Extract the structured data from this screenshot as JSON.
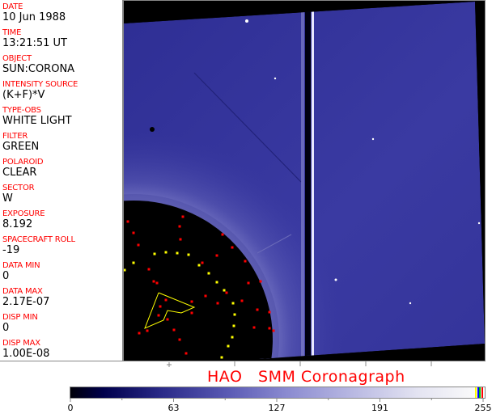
{
  "header_fields": [
    {
      "label": "DATE",
      "value": "10 Jun 1988"
    },
    {
      "label": "TIME",
      "value": "13:21:51 UT"
    },
    {
      "label": "OBJECT",
      "value": "SUN:CORONA"
    },
    {
      "label": "INTENSITY SOURCE",
      "value": "(K+F)*V"
    },
    {
      "label": "TYPE-OBS",
      "value": "WHITE LIGHT"
    },
    {
      "label": "FILTER",
      "value": "GREEN"
    },
    {
      "label": "POLAROID",
      "value": "CLEAR"
    },
    {
      "label": "SECTOR",
      "value": "W"
    },
    {
      "label": "EXPOSURE",
      "value": "8.192"
    },
    {
      "label": "SPACECRAFT ROLL",
      "value": "-19"
    },
    {
      "label": "DATA MIN",
      "value": "0"
    },
    {
      "label": "DATA MAX",
      "value": "2.17E-07"
    },
    {
      "label": "DISP MIN",
      "value": "0"
    },
    {
      "label": "DISP MAX",
      "value": "1.00E-08"
    }
  ],
  "title": "HAO   SMM Coronagraph",
  "colorbar": {
    "min": 0,
    "max": 255,
    "tick_labels": [
      "0",
      "63",
      "127",
      "191",
      "255"
    ],
    "colormap": [
      "#000008",
      "#00004c",
      "#5a5ab4",
      "#b8b8e2",
      "#fafafa"
    ],
    "end_stripes": [
      "#ffff00",
      "#0000ff",
      "#00c000",
      "#ff0000"
    ]
  },
  "colors": {
    "label": "#ff0000",
    "marker_red": "#ff0000",
    "marker_yellow": "#ffff00",
    "image_bg": "#3a3aa0"
  }
}
